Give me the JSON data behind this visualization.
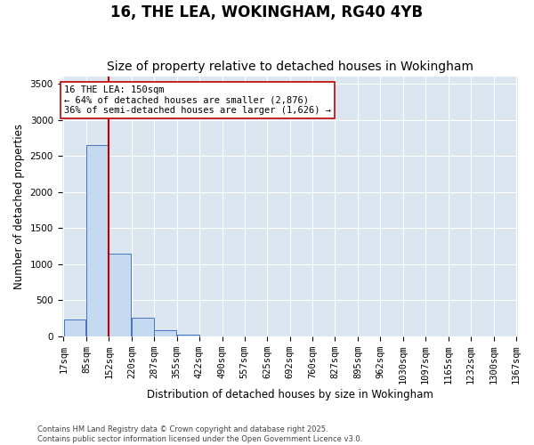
{
  "title": "16, THE LEA, WOKINGHAM, RG40 4YB",
  "subtitle": "Size of property relative to detached houses in Wokingham",
  "xlabel": "Distribution of detached houses by size in Wokingham",
  "ylabel": "Number of detached properties",
  "tick_labels": [
    "17sqm",
    "85sqm",
    "152sqm",
    "220sqm",
    "287sqm",
    "355sqm",
    "422sqm",
    "490sqm",
    "557sqm",
    "625sqm",
    "692sqm",
    "760sqm",
    "827sqm",
    "895sqm",
    "962sqm",
    "1030sqm",
    "1097sqm",
    "1165sqm",
    "1232sqm",
    "1300sqm",
    "1367sqm"
  ],
  "bin_left_edges": [
    17,
    85,
    152,
    220,
    287,
    355,
    422,
    490,
    557,
    625,
    692,
    760,
    827,
    895,
    962,
    1030,
    1097,
    1165,
    1232,
    1300
  ],
  "bar_heights": [
    230,
    2650,
    1150,
    260,
    90,
    20,
    5,
    0,
    0,
    0,
    0,
    0,
    0,
    0,
    0,
    0,
    0,
    0,
    0,
    0
  ],
  "bin_width": 67,
  "bar_color": "#c5d9f1",
  "bar_edge_color": "#4472c4",
  "property_size": 152,
  "vline_color": "#c00000",
  "annotation_text": "16 THE LEA: 150sqm\n← 64% of detached houses are smaller (2,876)\n36% of semi-detached houses are larger (1,626) →",
  "annotation_box_color": "#ffffff",
  "annotation_box_edge": "#c00000",
  "ylim": [
    0,
    3600
  ],
  "yticks": [
    0,
    500,
    1000,
    1500,
    2000,
    2500,
    3000,
    3500
  ],
  "ax_bg_color": "#dce6f1",
  "background_color": "#ffffff",
  "grid_color": "#ffffff",
  "footer_line1": "Contains HM Land Registry data © Crown copyright and database right 2025.",
  "footer_line2": "Contains public sector information licensed under the Open Government Licence v3.0.",
  "title_fontsize": 12,
  "subtitle_fontsize": 10,
  "axis_label_fontsize": 8.5,
  "tick_fontsize": 7.5
}
